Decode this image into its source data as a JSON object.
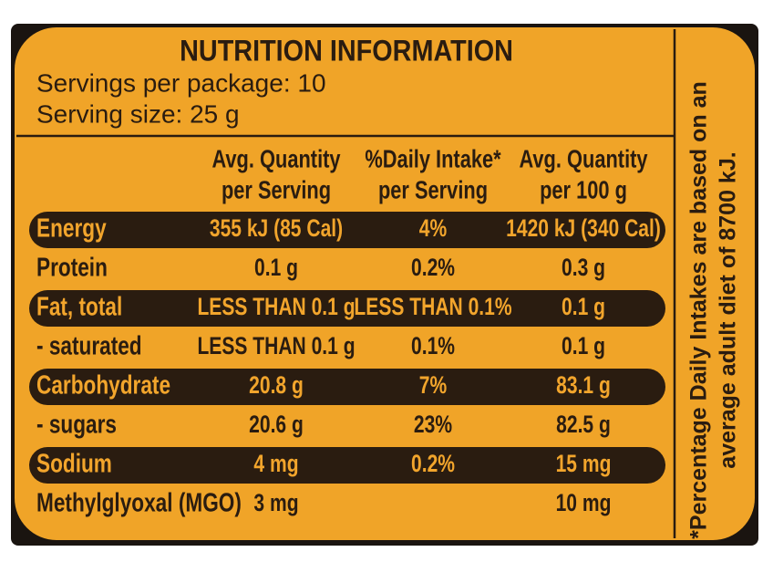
{
  "header": {
    "title": "NUTRITION INFORMATION",
    "servings": "Servings per package: 10",
    "serving_size": "Serving size: 25 g"
  },
  "table": {
    "columns": [
      [
        "Avg. Quantity",
        "per Serving"
      ],
      [
        "%Daily Intake*",
        "per Serving"
      ],
      [
        "Avg. Quantity",
        "per 100 g"
      ]
    ],
    "rows": [
      {
        "label": "Energy",
        "cells": [
          "355 kJ (85 Cal)",
          "4%",
          "1420 kJ (340 Cal)"
        ],
        "highlight": true
      },
      {
        "label": "Protein",
        "cells": [
          "0.1 g",
          "0.2%",
          "0.3 g"
        ],
        "highlight": false
      },
      {
        "label": "Fat, total",
        "cells": [
          "LESS THAN 0.1 g",
          "LESS THAN 0.1%",
          "0.1 g"
        ],
        "highlight": true
      },
      {
        "label": " - saturated",
        "cells": [
          "LESS THAN 0.1 g",
          "0.1%",
          "0.1 g"
        ],
        "highlight": false
      },
      {
        "label": "Carbohydrate",
        "cells": [
          "20.8 g",
          "7%",
          "83.1 g"
        ],
        "highlight": true
      },
      {
        "label": " - sugars",
        "cells": [
          "20.6 g",
          "23%",
          "82.5 g"
        ],
        "highlight": false
      },
      {
        "label": "Sodium",
        "cells": [
          "4 mg",
          "0.2%",
          "15 mg"
        ],
        "highlight": true
      },
      {
        "label": "Methylglyoxal (MGO)",
        "cells": [
          "3 mg",
          null,
          "10 mg"
        ],
        "highlight": false
      }
    ]
  },
  "side_note": [
    "*Percentage Daily Intakes are based on an",
    "average adult diet of 8700 kJ."
  ]
}
